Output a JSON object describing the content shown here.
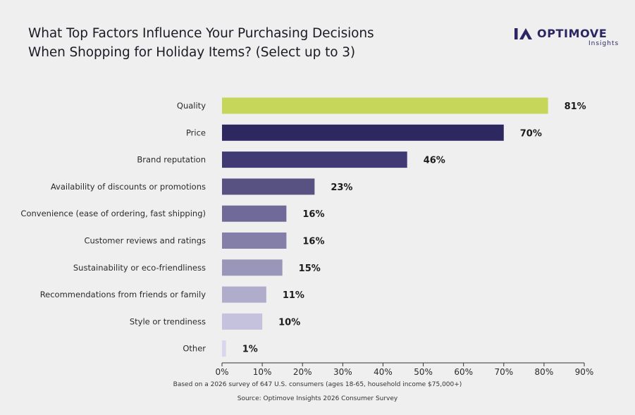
{
  "header": {
    "title_line1": "What Top Factors Influence Your Purchasing Decisions",
    "title_line2": "When Shopping for Holiday Items? (Select up to 3)"
  },
  "logo": {
    "name": "OPTIMOVE",
    "subtitle": "Insights",
    "icon": "optimove-logo-mark",
    "color": "#2b2661"
  },
  "chart_data": {
    "type": "bar",
    "orientation": "horizontal",
    "categories": [
      "Quality",
      "Price",
      "Brand reputation",
      "Availability of discounts or promotions",
      "Convenience (ease of ordering, fast shipping)",
      "Customer reviews and ratings",
      "Sustainability or eco-friendliness",
      "Recommendations from friends or family",
      "Style or trendiness",
      "Other"
    ],
    "values": [
      81,
      70,
      46,
      23,
      16,
      16,
      15,
      11,
      10,
      1
    ],
    "value_labels": [
      "81%",
      "70%",
      "46%",
      "23%",
      "16%",
      "16%",
      "15%",
      "11%",
      "10%",
      "1%"
    ],
    "colors": [
      "#c5d65a",
      "#2e2860",
      "#3f3a74",
      "#575281",
      "#6f6a97",
      "#837fa8",
      "#9a96ba",
      "#b0adcc",
      "#c5c2de",
      "#d8d6ec"
    ],
    "xlim": [
      0,
      90
    ],
    "xticks": [
      0,
      10,
      20,
      30,
      40,
      50,
      60,
      70,
      80,
      90
    ],
    "xtick_labels": [
      "0%",
      "10%",
      "20%",
      "30%",
      "40%",
      "50%",
      "60%",
      "70%",
      "80%",
      "90%"
    ],
    "grid": false,
    "legend": "none"
  },
  "footer": {
    "note": "Based on a 2026 survey of 647 U.S. consumers (ages 18-65, household income $75,000+)",
    "source": "Source: Optimove Insights 2026 Consumer Survey"
  }
}
